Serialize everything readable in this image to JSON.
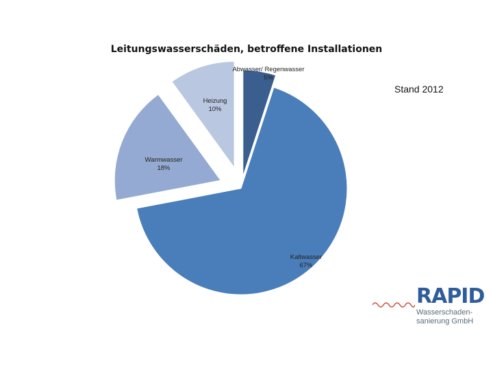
{
  "chart_data": {
    "type": "pie",
    "title": "Leitungswasserschäden, betroffene Installationen",
    "annotation": "Stand 2012",
    "slices": [
      {
        "name": "Abwasser/ Regenwasser",
        "value": 5,
        "label": "5%",
        "color": "#3a5f8f"
      },
      {
        "name": "Kaltwasser",
        "value": 67,
        "label": "67%",
        "color": "#4a7ebb"
      },
      {
        "name": "Warmwasser",
        "value": 18,
        "label": "18%",
        "color": "#95aad2"
      },
      {
        "name": "Heizung",
        "value": 10,
        "label": "10%",
        "color": "#b9c7e1"
      }
    ]
  },
  "logo": {
    "word": "RAPID",
    "line1": "Wasserschaden-",
    "line2": "sanierung GmbH",
    "color": "#2f5d9a",
    "wave_color": "#d04a3a"
  }
}
